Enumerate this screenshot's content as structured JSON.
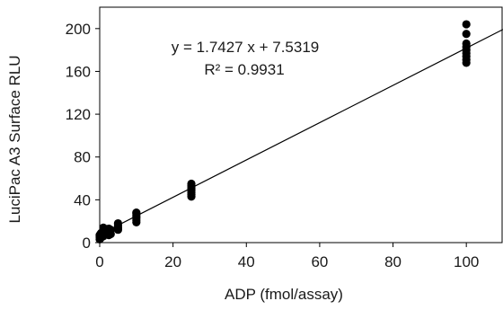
{
  "chart_data": {
    "type": "scatter",
    "title": "",
    "xlabel": "ADP (fmol/assay)",
    "ylabel": "LuciPac A3 Surface RLU",
    "xlim": [
      0,
      110
    ],
    "ylim": [
      0,
      220
    ],
    "x_ticks": [
      0,
      20,
      40,
      60,
      80,
      100
    ],
    "y_ticks": [
      0,
      40,
      80,
      120,
      160,
      200
    ],
    "grid": false,
    "legend": "none",
    "marker_color": "#000000",
    "points": [
      {
        "x": 0,
        "y": 3
      },
      {
        "x": 0,
        "y": 5
      },
      {
        "x": 0,
        "y": 6
      },
      {
        "x": 0,
        "y": 7
      },
      {
        "x": 0.2,
        "y": 4
      },
      {
        "x": 0.2,
        "y": 8
      },
      {
        "x": 0.4,
        "y": 9
      },
      {
        "x": 0.5,
        "y": 5
      },
      {
        "x": 0.5,
        "y": 7
      },
      {
        "x": 1,
        "y": 8
      },
      {
        "x": 1,
        "y": 10
      },
      {
        "x": 1,
        "y": 12
      },
      {
        "x": 1,
        "y": 14
      },
      {
        "x": 1,
        "y": 6
      },
      {
        "x": 2.5,
        "y": 7
      },
      {
        "x": 2.5,
        "y": 9
      },
      {
        "x": 2.5,
        "y": 11
      },
      {
        "x": 2.5,
        "y": 13
      },
      {
        "x": 3,
        "y": 8
      },
      {
        "x": 3,
        "y": 12
      },
      {
        "x": 5,
        "y": 12
      },
      {
        "x": 5,
        "y": 14
      },
      {
        "x": 5,
        "y": 16
      },
      {
        "x": 5,
        "y": 18
      },
      {
        "x": 10,
        "y": 19
      },
      {
        "x": 10,
        "y": 21
      },
      {
        "x": 10,
        "y": 23
      },
      {
        "x": 10,
        "y": 25
      },
      {
        "x": 10,
        "y": 27
      },
      {
        "x": 10,
        "y": 28
      },
      {
        "x": 25,
        "y": 43
      },
      {
        "x": 25,
        "y": 45
      },
      {
        "x": 25,
        "y": 47
      },
      {
        "x": 25,
        "y": 49
      },
      {
        "x": 25,
        "y": 51
      },
      {
        "x": 25,
        "y": 53
      },
      {
        "x": 25,
        "y": 55
      },
      {
        "x": 100,
        "y": 168
      },
      {
        "x": 100,
        "y": 171
      },
      {
        "x": 100,
        "y": 174
      },
      {
        "x": 100,
        "y": 177
      },
      {
        "x": 100,
        "y": 180
      },
      {
        "x": 100,
        "y": 183
      },
      {
        "x": 100,
        "y": 186
      },
      {
        "x": 100,
        "y": 195
      },
      {
        "x": 100,
        "y": 204
      }
    ],
    "trendline": {
      "slope": 1.7427,
      "intercept": 7.5319,
      "equation": "y = 1.7427 x + 7.5319",
      "r_squared": "R² = 0.9931"
    }
  }
}
